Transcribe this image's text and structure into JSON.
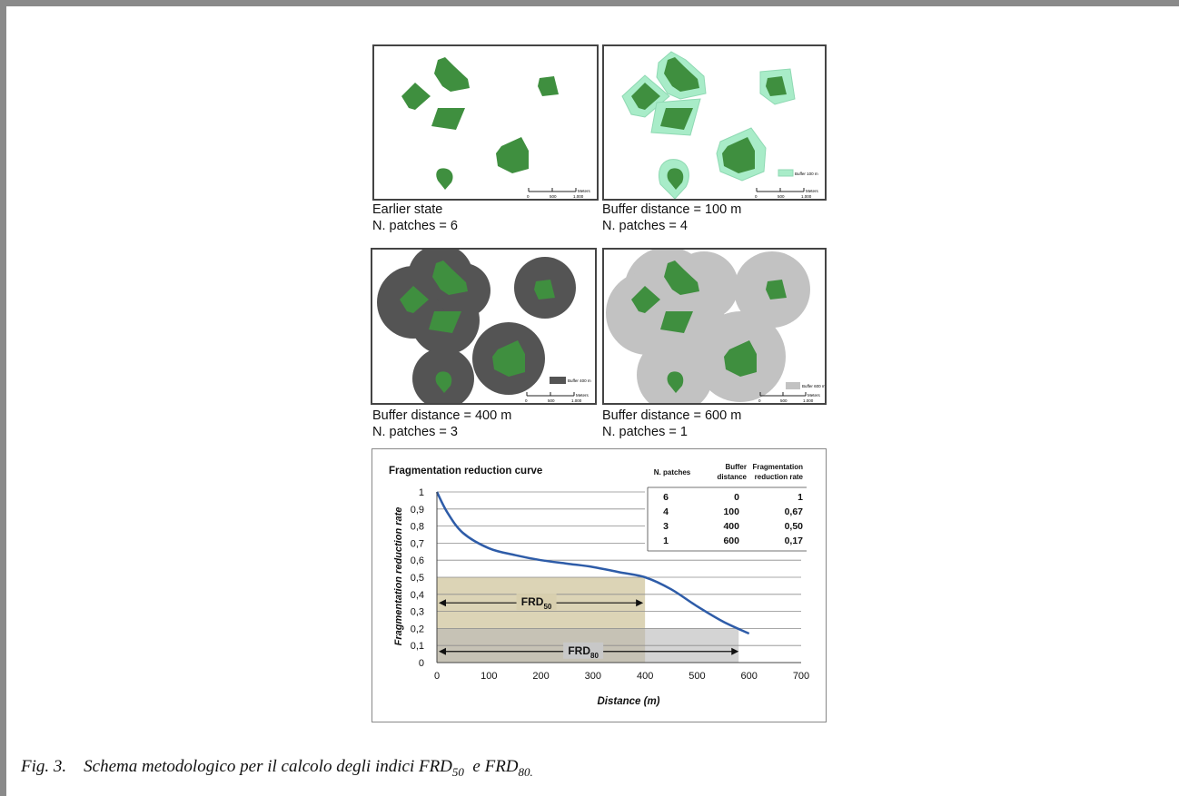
{
  "panels": [
    {
      "caption_line1": "Earlier state",
      "caption_line2": "N. patches = 6",
      "legend": "",
      "scale_label": "Meters",
      "scale_ticks": [
        "0",
        "500",
        "1.000"
      ]
    },
    {
      "caption_line1": "Buffer distance = 100  m",
      "caption_line2": "N. patches = 4",
      "legend": "Buffer 100 m",
      "scale_label": "Meters",
      "scale_ticks": [
        "0",
        "500",
        "1.000"
      ]
    },
    {
      "caption_line1": "Buffer distance = 400  m",
      "caption_line2": "N. patches = 3",
      "legend": "Buffer 400 m",
      "scale_label": "Meters",
      "scale_ticks": [
        "0",
        "500",
        "1.000"
      ]
    },
    {
      "caption_line1": "Buffer distance = 600  m",
      "caption_line2": "N. patches = 1",
      "legend": "Buffer 600 m",
      "scale_label": "Meters",
      "scale_ticks": [
        "0",
        "500",
        "1.000"
      ]
    }
  ],
  "colors": {
    "patch": "#3f8f3f",
    "buffer_100": "#a8ecc8",
    "buffer_400": "#545454",
    "buffer_600": "#c2c2c2",
    "curve": "#2e5ca8",
    "frd50_area": "#d8cfae",
    "frd80_area": "#cccccc"
  },
  "chart_data": {
    "type": "line",
    "title": "Fragmentation reduction curve",
    "xlabel": "Distance (m)",
    "ylabel": "Fragmentation reduction rate",
    "xlim": [
      0,
      700
    ],
    "ylim": [
      0,
      1
    ],
    "x_ticks": [
      "0",
      "100",
      "200",
      "300",
      "400",
      "500",
      "600",
      "700"
    ],
    "y_ticks": [
      "0",
      "0,1",
      "0,2",
      "0,3",
      "0,4",
      "0,5",
      "0,6",
      "0,7",
      "0,8",
      "0,9",
      "1"
    ],
    "series": [
      {
        "x": [
          0,
          20,
          50,
          100,
          150,
          200,
          250,
          300,
          350,
          400,
          450,
          500,
          550,
          600
        ],
        "y": [
          1,
          0.88,
          0.76,
          0.67,
          0.63,
          0.6,
          0.58,
          0.56,
          0.53,
          0.5,
          0.43,
          0.33,
          0.24,
          0.17
        ]
      }
    ],
    "table": {
      "headers": [
        [
          "N. patches",
          ""
        ],
        [
          "Buffer",
          "distance"
        ],
        [
          "Fragmentation",
          "reduction rate"
        ]
      ],
      "rows": [
        [
          "6",
          "0",
          "1"
        ],
        [
          "4",
          "100",
          "0,67"
        ],
        [
          "3",
          "400",
          "0,50"
        ],
        [
          "1",
          "600",
          "0,17"
        ]
      ]
    },
    "annotations": [
      {
        "label": "FRD",
        "sub": "50",
        "x_from": 0,
        "x_to": 400,
        "level": 0.5
      },
      {
        "label": "FRD",
        "sub": "80",
        "x_from": 0,
        "x_to": 580,
        "level": 0.2
      }
    ]
  },
  "figure_caption": {
    "prefix": "Fig. 3.",
    "text": "Schema metodologico per il calcolo degli indici FRD",
    "sub1": "50",
    "mid": "  e FRD",
    "sub2": "80.",
    "end": ""
  }
}
